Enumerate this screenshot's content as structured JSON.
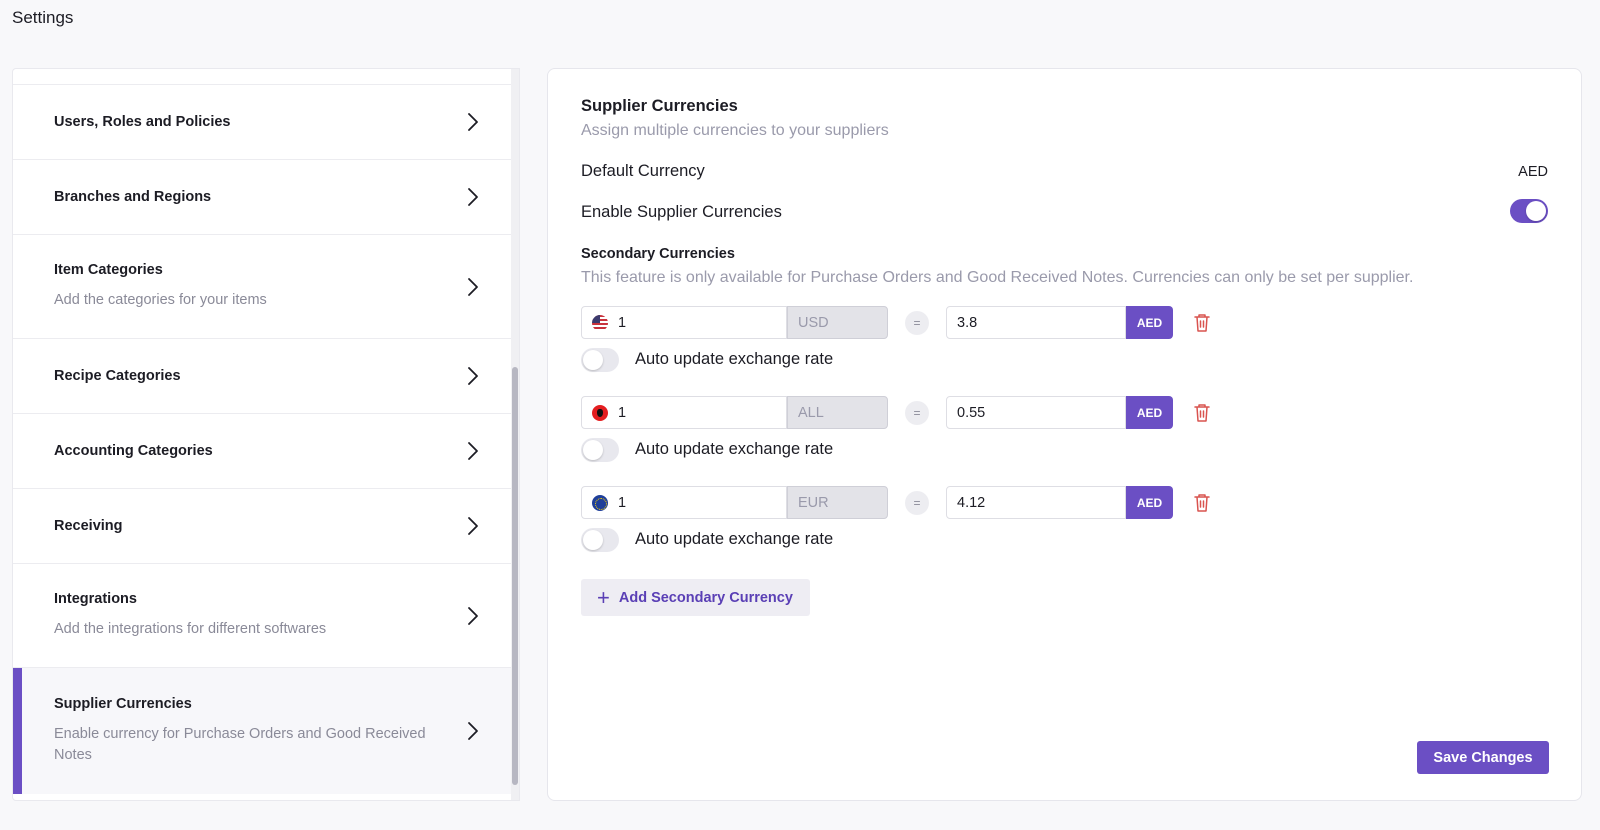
{
  "page": {
    "title": "Settings"
  },
  "sidebar": {
    "items": [
      {
        "label": "Users, Roles and Policies",
        "desc": ""
      },
      {
        "label": "Branches and Regions",
        "desc": ""
      },
      {
        "label": "Item Categories",
        "desc": "Add the categories for your items"
      },
      {
        "label": "Recipe Categories",
        "desc": ""
      },
      {
        "label": "Accounting Categories",
        "desc": ""
      },
      {
        "label": "Receiving",
        "desc": ""
      },
      {
        "label": "Integrations",
        "desc": "Add the integrations for different softwares"
      },
      {
        "label": "Supplier Currencies",
        "desc": "Enable currency for Purchase Orders and Good Received Notes",
        "active": true
      }
    ]
  },
  "main": {
    "title": "Supplier Currencies",
    "subtitle": "Assign multiple currencies to your suppliers",
    "default_currency_label": "Default Currency",
    "default_currency_value": "AED",
    "enable_label": "Enable Supplier Currencies",
    "enable_on": true,
    "secondary_heading": "Secondary Currencies",
    "secondary_desc": "This feature is only available for Purchase Orders and Good Received Notes. Currencies can only be set per supplier.",
    "equals_symbol": "=",
    "rows": [
      {
        "flag": "us-flag-icon",
        "amount": "1",
        "code": "USD",
        "rate": "3.8",
        "target": "AED",
        "auto_label": "Auto update exchange rate",
        "auto_on": false
      },
      {
        "flag": "albania-flag-icon",
        "amount": "1",
        "code": "ALL",
        "rate": "0.55",
        "target": "AED",
        "auto_label": "Auto update exchange rate",
        "auto_on": false
      },
      {
        "flag": "eu-flag-icon",
        "amount": "1",
        "code": "EUR",
        "rate": "4.12",
        "target": "AED",
        "auto_label": "Auto update exchange rate",
        "auto_on": false
      }
    ],
    "add_button_label": "Add Secondary Currency",
    "save_button_label": "Save Changes"
  },
  "colors": {
    "accent": "#6b4fc4",
    "danger": "#d9534f",
    "muted_text": "#9a9aab"
  }
}
